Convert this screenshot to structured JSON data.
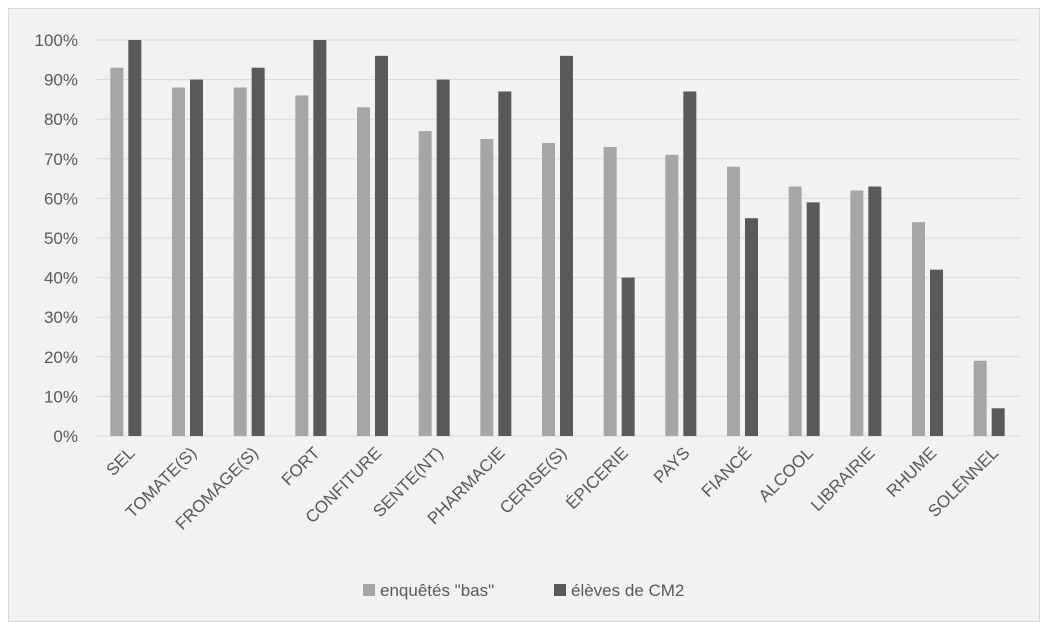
{
  "chart_data": {
    "type": "bar",
    "title": "",
    "xlabel": "",
    "ylabel": "",
    "ylim": [
      0,
      100
    ],
    "yticks": [
      "0%",
      "10%",
      "20%",
      "30%",
      "40%",
      "50%",
      "60%",
      "70%",
      "80%",
      "90%",
      "100%"
    ],
    "grid": true,
    "legend_position": "bottom",
    "categories": [
      "SEL",
      "TOMATE(S)",
      "FROMAGE(S)",
      "FORT",
      "CONFITURE",
      "SENTE(NT)",
      "PHARMACIE",
      "CERISE(S)",
      "ÉPICERIE",
      "PAYS",
      "FIANCÉ",
      "ALCOOL",
      "LIBRAIRIE",
      "RHUME",
      "SOLENNEL"
    ],
    "series": [
      {
        "name": "enquêtés \"bas\"",
        "color": "#a6a6a6",
        "values": [
          93,
          88,
          88,
          86,
          83,
          77,
          75,
          74,
          73,
          71,
          68,
          63,
          62,
          54,
          19
        ]
      },
      {
        "name": "élèves de CM2",
        "color": "#595959",
        "values": [
          100,
          90,
          93,
          100,
          96,
          90,
          87,
          96,
          40,
          87,
          55,
          59,
          63,
          42,
          7
        ]
      }
    ]
  }
}
